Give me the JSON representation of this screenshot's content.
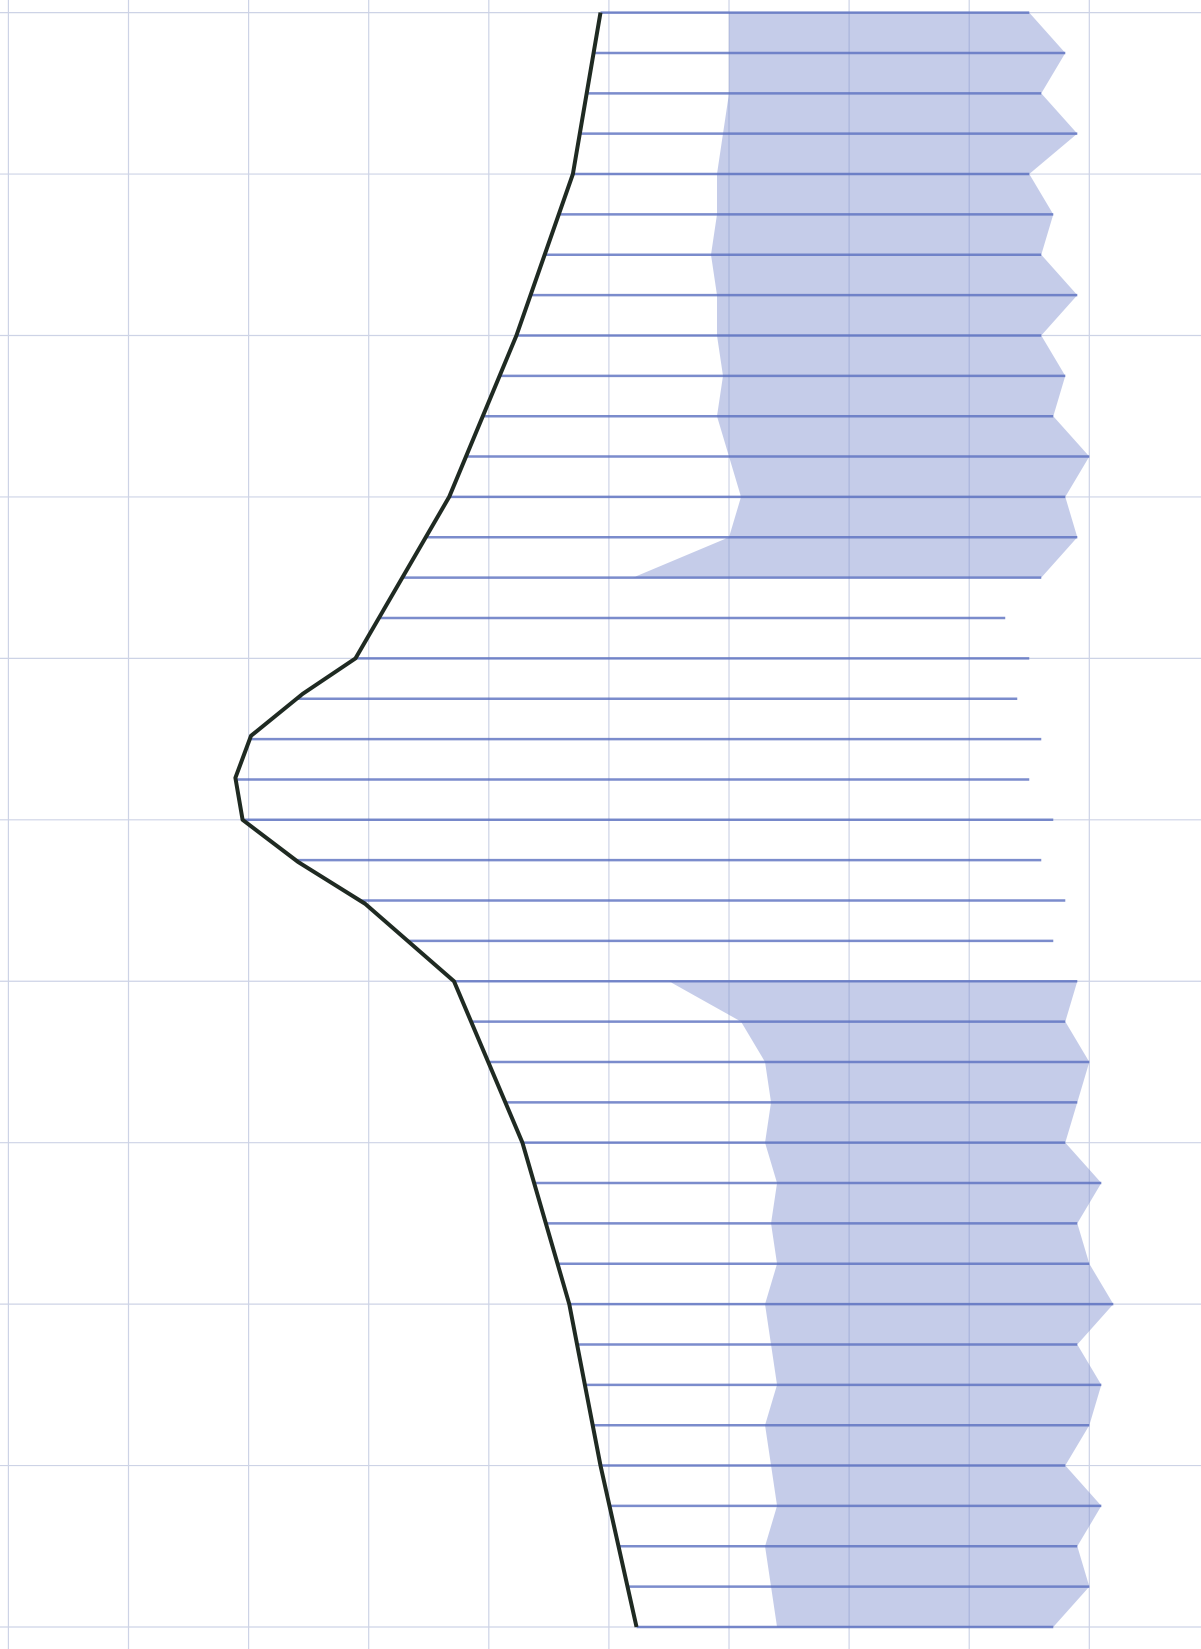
{
  "chart_data": {
    "type": "line",
    "orientation": "horizontal",
    "xlim": [
      0,
      9.86
    ],
    "ylim": [
      0,
      10
    ],
    "xticks": [
      0,
      1,
      2,
      3,
      4,
      5,
      6,
      7,
      8,
      9
    ],
    "yticks": [
      0,
      1,
      2,
      3,
      4,
      5,
      6,
      7,
      8,
      9,
      10
    ],
    "grid": true,
    "series": [
      {
        "color": "#1f2a22",
        "y": [
          0,
          1,
          2,
          3,
          3.5,
          4,
          4.22,
          4.48,
          4.74,
          5,
          5.26,
          5.52,
          6,
          7,
          8,
          9,
          10
        ],
        "values": [
          4.93,
          4.7,
          4.23,
          3.67,
          3.28,
          2.89,
          2.45,
          2.02,
          1.89,
          1.95,
          2.41,
          2.97,
          3.71,
          4.28,
          4.67,
          4.93,
          5.23
        ]
      },
      {
        "color": "#5a6fbf",
        "y": [
          0,
          0.25,
          0.5,
          0.75,
          1,
          1.25,
          1.5,
          1.75,
          2,
          2.25,
          2.5,
          2.75,
          3,
          3.25,
          3.5,
          3.75,
          4,
          4.25,
          4.5,
          4.75,
          5,
          5.25,
          5.5,
          5.75,
          6,
          6.25,
          6.5,
          6.75,
          7,
          7.25,
          7.5,
          7.75,
          8,
          8.25,
          8.5,
          8.75,
          9,
          9.25,
          9.5,
          9.75,
          10
        ],
        "values": [
          8.5,
          8.8,
          8.6,
          8.9,
          8.5,
          8.7,
          8.6,
          8.9,
          8.6,
          8.8,
          8.7,
          9.0,
          8.8,
          8.9,
          8.6,
          8.3,
          8.5,
          8.4,
          8.6,
          8.5,
          8.7,
          8.6,
          8.8,
          8.7,
          8.9,
          8.8,
          9.0,
          8.9,
          8.8,
          9.1,
          8.9,
          9.0,
          9.2,
          8.9,
          9.1,
          9.0,
          8.8,
          9.1,
          8.9,
          9.0,
          8.7
        ]
      },
      {
        "color": "#7f8fcf",
        "y": [
          0,
          0.25,
          0.5,
          0.75,
          1,
          1.25,
          1.5,
          1.75,
          2,
          2.25,
          2.5,
          2.75,
          3,
          3.25,
          3.5,
          3.75,
          4,
          4.25,
          4.5,
          4.75,
          5,
          5.25,
          5.5,
          5.75,
          6,
          6.25,
          6.5,
          6.75,
          7,
          7.25,
          7.5,
          7.75,
          8,
          8.25,
          8.5,
          8.75,
          9,
          9.25,
          9.5,
          9.75,
          10
        ],
        "values": [
          6.0,
          6.0,
          6.0,
          5.95,
          5.9,
          5.9,
          5.85,
          5.9,
          5.9,
          5.95,
          5.9,
          6.0,
          6.1,
          6.0,
          5.2,
          null,
          null,
          null,
          null,
          null,
          null,
          null,
          null,
          null,
          5.5,
          6.1,
          6.3,
          6.35,
          6.3,
          6.4,
          6.35,
          6.4,
          6.3,
          6.35,
          6.4,
          6.3,
          6.35,
          6.4,
          6.3,
          6.35,
          6.4
        ]
      }
    ]
  }
}
